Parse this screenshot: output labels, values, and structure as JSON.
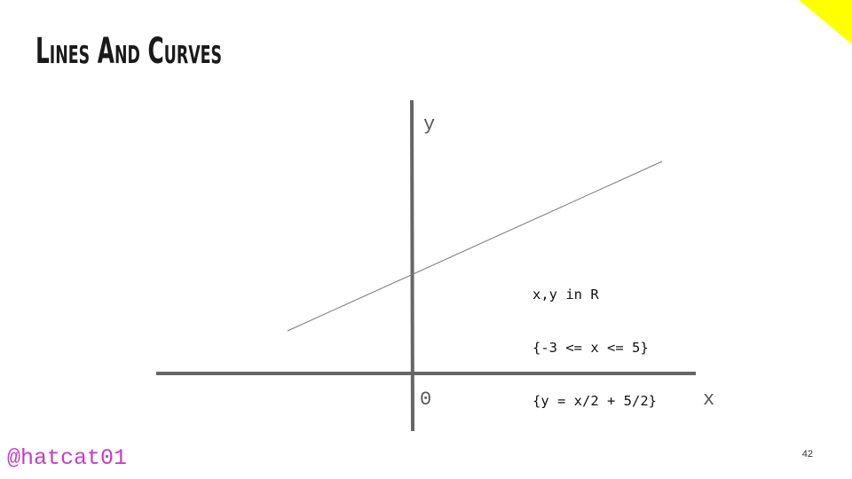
{
  "slide": {
    "title": "Lines And Curves",
    "handle": "@hatcat01",
    "page_number": "42",
    "accent_color": "#ffff00",
    "handle_color": "#c43cc4"
  },
  "diagram": {
    "axis_x_label": "x",
    "axis_y_label": "y",
    "origin_label": "0",
    "equations": [
      "x,y in R",
      "{-3 <= x <= 5}",
      "{y = x/2 + 5/2}"
    ],
    "axis_color": "#666666",
    "line_color": "#777777"
  }
}
